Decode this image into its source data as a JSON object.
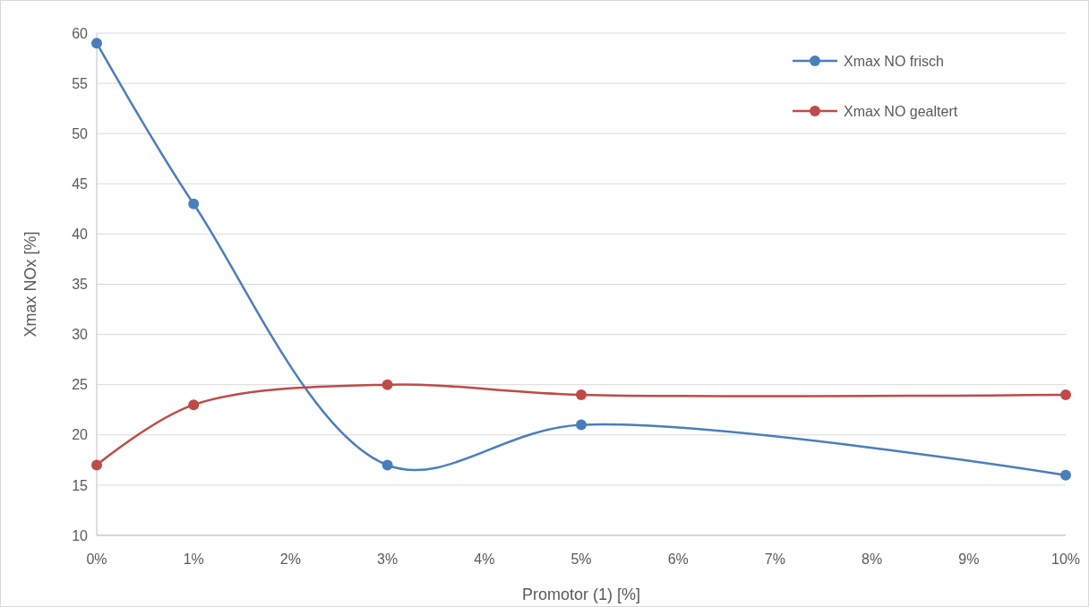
{
  "chart_data": {
    "type": "line",
    "xlabel": "Promotor (1) [%]",
    "ylabel": "Xmax NOx [%]",
    "x": [
      0,
      1,
      3,
      5,
      10
    ],
    "series": [
      {
        "name": "Xmax NO frisch",
        "color": "#4a7ebb",
        "values": [
          59,
          43,
          17,
          21,
          16
        ]
      },
      {
        "name": "Xmax NO gealtert",
        "color": "#be4b48",
        "values": [
          17,
          23,
          25,
          24,
          24
        ]
      }
    ],
    "xlim": [
      0,
      10
    ],
    "xticks": [
      {
        "value": 0,
        "label": "0%"
      },
      {
        "value": 1,
        "label": "1%"
      },
      {
        "value": 2,
        "label": "2%"
      },
      {
        "value": 3,
        "label": "3%"
      },
      {
        "value": 4,
        "label": "4%"
      },
      {
        "value": 5,
        "label": "5%"
      },
      {
        "value": 6,
        "label": "6%"
      },
      {
        "value": 7,
        "label": "7%"
      },
      {
        "value": 8,
        "label": "8%"
      },
      {
        "value": 9,
        "label": "9%"
      },
      {
        "value": 10,
        "label": "10%"
      }
    ],
    "ylim": [
      10,
      60
    ],
    "yticks": [
      10,
      15,
      20,
      25,
      30,
      35,
      40,
      45,
      50,
      55,
      60
    ],
    "grid": "y",
    "legend": "top right",
    "marker": "circle",
    "line_style": "solid"
  }
}
